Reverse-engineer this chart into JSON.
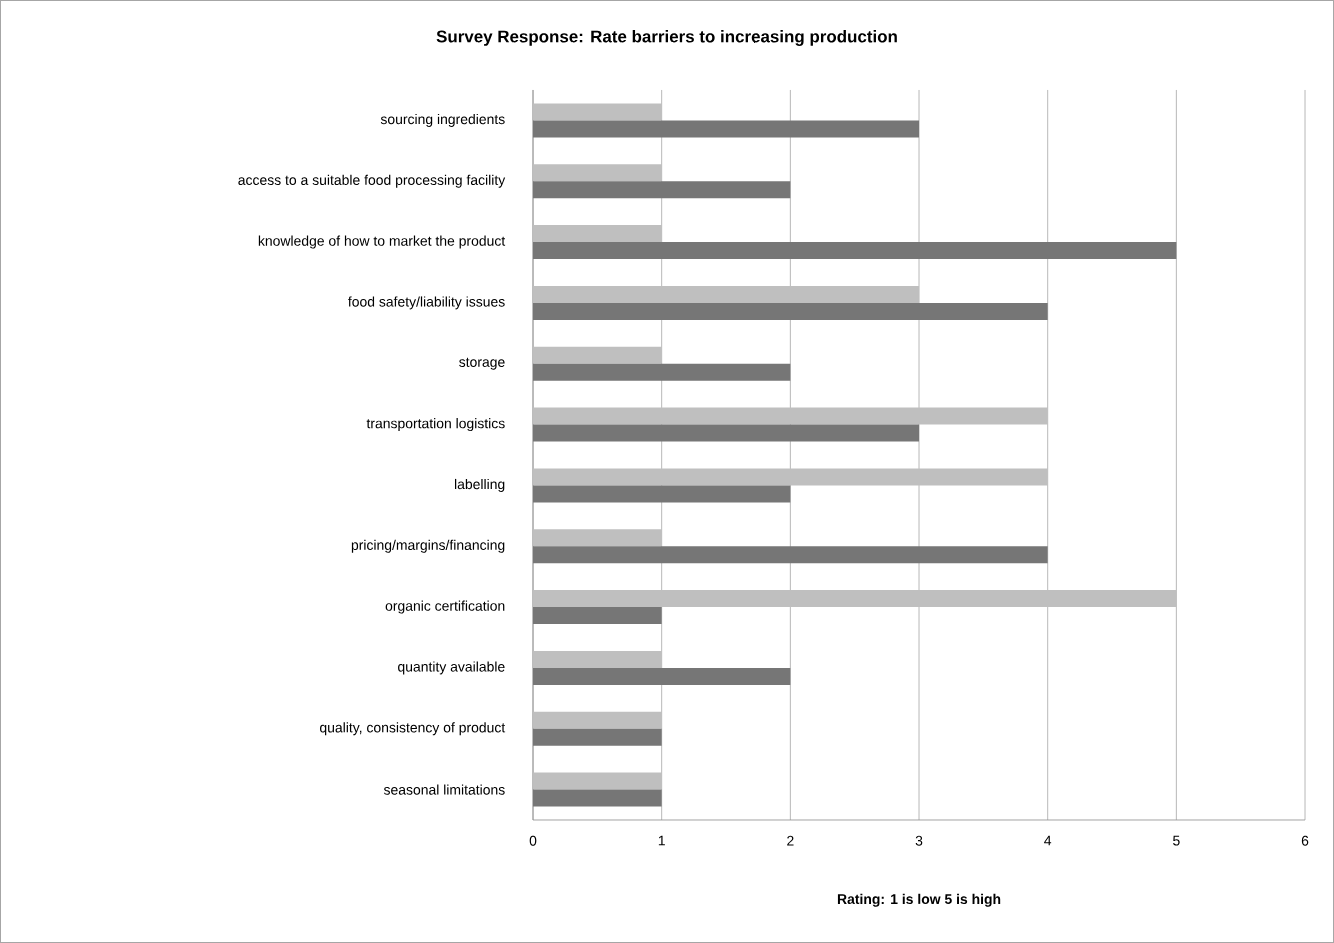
{
  "chart_data": {
    "type": "bar",
    "orientation": "horizontal",
    "title": "**Survey Response:  Rate barriers to increasing production**",
    "xlabel": "**Rating: 1 is low 5 is high**",
    "categories": [
      "sourcing ingredients",
      "access to a suitable food processing facility",
      "knowledge of how to market the product",
      "food safety/liability issues",
      "storage",
      "transportation logistics",
      "labelling",
      "pricing/margins/financing",
      "organic certification",
      "quantity available",
      "quality, consistency of product",
      "seasonal limitations"
    ],
    "series": [
      {
        "color": "#bfbfbf",
        "values": [
          1,
          1,
          1,
          3,
          1,
          4,
          4,
          1,
          5,
          1,
          1,
          1
        ]
      },
      {
        "color": "#767676",
        "values": [
          3,
          2,
          5,
          4,
          2,
          3,
          2,
          4,
          1,
          2,
          1,
          1
        ]
      }
    ],
    "xlim": [
      0,
      6
    ],
    "xticks": [
      0,
      1,
      2,
      3,
      4,
      5,
      6
    ],
    "grid": "x"
  }
}
